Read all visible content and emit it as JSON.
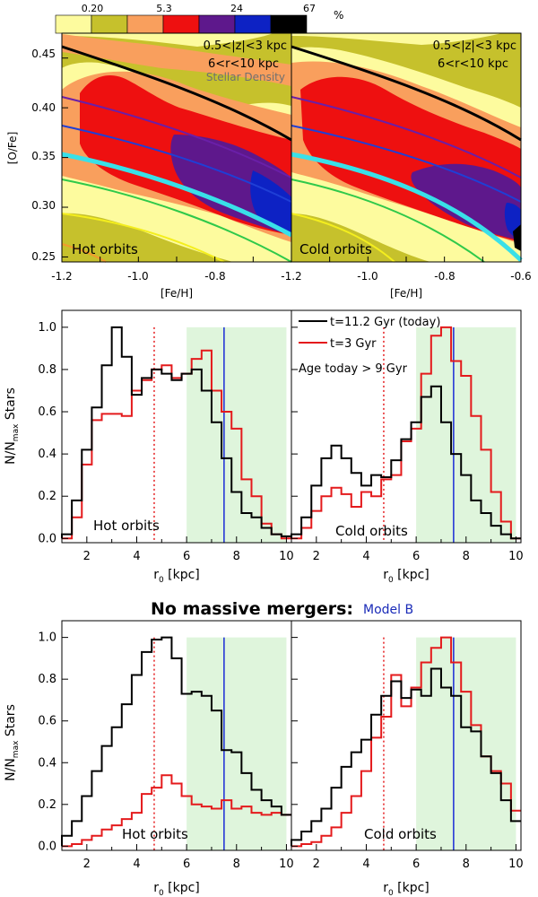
{
  "colorbar": {
    "labels": [
      "0.20",
      "5.3",
      "24",
      "67"
    ],
    "unit": "%",
    "colors": [
      "#fdfb9e",
      "#c6c12c",
      "#f99f5d",
      "#ee1010",
      "#5e188c",
      "#0d22c4",
      "#000000"
    ]
  },
  "chart_data": [
    {
      "id": "hot-density",
      "type": "heatmap",
      "panel_label": "Hot orbits",
      "annotation_z": "0.5<|z|<3 kpc",
      "annotation_r": "6<r<10 kpc",
      "annotation_density": "Stellar Density",
      "xlabel": "[Fe/H]",
      "ylabel": "[O/Fe]",
      "xlim": [
        -1.2,
        -0.6
      ],
      "ylim": [
        0.245,
        0.475
      ],
      "xticks": [
        "-1.2",
        "-1.0",
        "-0.8"
      ],
      "yticks": [
        "0.25",
        "0.30",
        "0.35",
        "0.40",
        "0.45"
      ],
      "curve_color_names": [
        "black",
        "purple",
        "blue",
        "cyan",
        "green",
        "yellow",
        "orange"
      ]
    },
    {
      "id": "cold-density",
      "type": "heatmap",
      "panel_label": "Cold orbits",
      "annotation_z": "0.5<|z|<3 kpc",
      "annotation_r": "6<r<10 kpc",
      "xlabel": "[Fe/H]",
      "xlim": [
        -1.2,
        -0.6
      ],
      "ylim": [
        0.245,
        0.475
      ],
      "xticks": [
        "-1.2",
        "-1.0",
        "-0.8",
        "-0.6"
      ]
    },
    {
      "id": "hot-hist-a",
      "type": "line",
      "panel_label": "Hot orbits",
      "xlabel": "r0 [kpc]",
      "ylabel": "N/Nmax Stars",
      "xlim": [
        1,
        10.2
      ],
      "ylim": [
        -0.02,
        1.08
      ],
      "xticks": [
        "2",
        "4",
        "6",
        "8",
        "10"
      ],
      "yticks": [
        "0.0",
        "0.2",
        "0.4",
        "0.6",
        "0.8",
        "1.0"
      ],
      "shade_range": [
        6,
        10
      ],
      "solar_radius": 7.5,
      "dotted_line": 4.7,
      "bin_edges": [
        1.0,
        1.4,
        1.8,
        2.2,
        2.6,
        3.0,
        3.4,
        3.8,
        4.2,
        4.6,
        5.0,
        5.4,
        5.8,
        6.2,
        6.6,
        7.0,
        7.4,
        7.8,
        8.2,
        8.6,
        9.0,
        9.4,
        9.8,
        10.2
      ],
      "series": [
        {
          "name": "t=11.2 Gyr (today)",
          "color": "#000000",
          "values": [
            0.02,
            0.18,
            0.42,
            0.62,
            0.82,
            1.0,
            0.86,
            0.68,
            0.76,
            0.8,
            0.78,
            0.75,
            0.78,
            0.8,
            0.7,
            0.55,
            0.38,
            0.22,
            0.12,
            0.1,
            0.05,
            0.02,
            0.01
          ]
        },
        {
          "name": "t=3 Gyr",
          "color": "#e41a1c",
          "values": [
            0.0,
            0.1,
            0.35,
            0.56,
            0.59,
            0.59,
            0.58,
            0.7,
            0.75,
            0.8,
            0.82,
            0.76,
            0.78,
            0.85,
            0.89,
            0.7,
            0.6,
            0.52,
            0.28,
            0.2,
            0.07,
            0.02,
            0.0
          ]
        }
      ]
    },
    {
      "id": "cold-hist-a",
      "type": "line",
      "panel_label": "Cold orbits",
      "legend": [
        "t=11.2 Gyr (today)",
        "t=3 Gyr"
      ],
      "annotation": "Age today > 9 Gyr",
      "xlabel": "r0 [kpc]",
      "xlim": [
        1,
        10.2
      ],
      "ylim": [
        -0.02,
        1.08
      ],
      "xticks": [
        "2",
        "4",
        "6",
        "8",
        "10"
      ],
      "shade_range": [
        6,
        10
      ],
      "solar_radius": 7.5,
      "dotted_line": 4.7,
      "bin_edges": [
        1.0,
        1.4,
        1.8,
        2.2,
        2.6,
        3.0,
        3.4,
        3.8,
        4.2,
        4.6,
        5.0,
        5.4,
        5.8,
        6.2,
        6.6,
        7.0,
        7.4,
        7.8,
        8.2,
        8.6,
        9.0,
        9.4,
        9.8,
        10.2
      ],
      "series": [
        {
          "name": "t=11.2 Gyr (today)",
          "color": "#000000",
          "values": [
            0.02,
            0.1,
            0.25,
            0.38,
            0.44,
            0.38,
            0.31,
            0.25,
            0.3,
            0.29,
            0.37,
            0.47,
            0.55,
            0.67,
            0.72,
            0.55,
            0.4,
            0.3,
            0.18,
            0.12,
            0.06,
            0.02,
            0.0
          ]
        },
        {
          "name": "t=3 Gyr",
          "color": "#e41a1c",
          "values": [
            0.0,
            0.05,
            0.13,
            0.2,
            0.24,
            0.21,
            0.15,
            0.22,
            0.2,
            0.28,
            0.3,
            0.46,
            0.52,
            0.78,
            0.96,
            1.0,
            0.84,
            0.77,
            0.58,
            0.42,
            0.22,
            0.08,
            0.0
          ]
        }
      ]
    },
    {
      "id": "hot-hist-b",
      "type": "line",
      "panel_label": "Hot orbits",
      "xlabel": "r0 [kpc]",
      "ylabel": "N/Nmax Stars",
      "xlim": [
        1,
        10.2
      ],
      "ylim": [
        -0.02,
        1.08
      ],
      "xticks": [
        "2",
        "4",
        "6",
        "8",
        "10"
      ],
      "yticks": [
        "0.0",
        "0.2",
        "0.4",
        "0.6",
        "0.8",
        "1.0"
      ],
      "shade_range": [
        6,
        10
      ],
      "solar_radius": 7.5,
      "dotted_line": 4.7,
      "bin_edges": [
        1.0,
        1.4,
        1.8,
        2.2,
        2.6,
        3.0,
        3.4,
        3.8,
        4.2,
        4.6,
        5.0,
        5.4,
        5.8,
        6.2,
        6.6,
        7.0,
        7.4,
        7.8,
        8.2,
        8.6,
        9.0,
        9.4,
        9.8,
        10.2
      ],
      "series": [
        {
          "name": "t=11.2 Gyr (today)",
          "color": "#000000",
          "values": [
            0.05,
            0.12,
            0.24,
            0.36,
            0.48,
            0.57,
            0.68,
            0.82,
            0.93,
            0.99,
            1.0,
            0.9,
            0.73,
            0.74,
            0.72,
            0.65,
            0.46,
            0.45,
            0.35,
            0.27,
            0.22,
            0.19,
            0.15
          ]
        },
        {
          "name": "t=3 Gyr",
          "color": "#e41a1c",
          "values": [
            0.0,
            0.01,
            0.03,
            0.05,
            0.08,
            0.1,
            0.13,
            0.16,
            0.25,
            0.28,
            0.34,
            0.3,
            0.24,
            0.2,
            0.19,
            0.18,
            0.22,
            0.18,
            0.19,
            0.16,
            0.15,
            0.16,
            0.15
          ]
        }
      ]
    },
    {
      "id": "cold-hist-b",
      "type": "line",
      "panel_label": "Cold orbits",
      "xlabel": "r0 [kpc]",
      "xlim": [
        1,
        10.2
      ],
      "ylim": [
        -0.02,
        1.08
      ],
      "xticks": [
        "2",
        "4",
        "6",
        "8",
        "10"
      ],
      "shade_range": [
        6,
        10
      ],
      "solar_radius": 7.5,
      "dotted_line": 4.7,
      "bin_edges": [
        1.0,
        1.4,
        1.8,
        2.2,
        2.6,
        3.0,
        3.4,
        3.8,
        4.2,
        4.6,
        5.0,
        5.4,
        5.8,
        6.2,
        6.6,
        7.0,
        7.4,
        7.8,
        8.2,
        8.6,
        9.0,
        9.4,
        9.8,
        10.2
      ],
      "series": [
        {
          "name": "t=11.2 Gyr (today)",
          "color": "#000000",
          "values": [
            0.03,
            0.07,
            0.12,
            0.18,
            0.28,
            0.38,
            0.45,
            0.51,
            0.63,
            0.72,
            0.79,
            0.71,
            0.75,
            0.72,
            0.85,
            0.76,
            0.72,
            0.57,
            0.55,
            0.43,
            0.35,
            0.22,
            0.12
          ]
        },
        {
          "name": "t=3 Gyr",
          "color": "#e41a1c",
          "values": [
            0.0,
            0.01,
            0.02,
            0.05,
            0.09,
            0.16,
            0.24,
            0.36,
            0.52,
            0.62,
            0.82,
            0.67,
            0.76,
            0.88,
            0.95,
            1.0,
            0.88,
            0.74,
            0.58,
            0.43,
            0.36,
            0.3,
            0.17
          ]
        }
      ]
    }
  ],
  "section_title": "No massive mergers:",
  "section_model": "Model B"
}
